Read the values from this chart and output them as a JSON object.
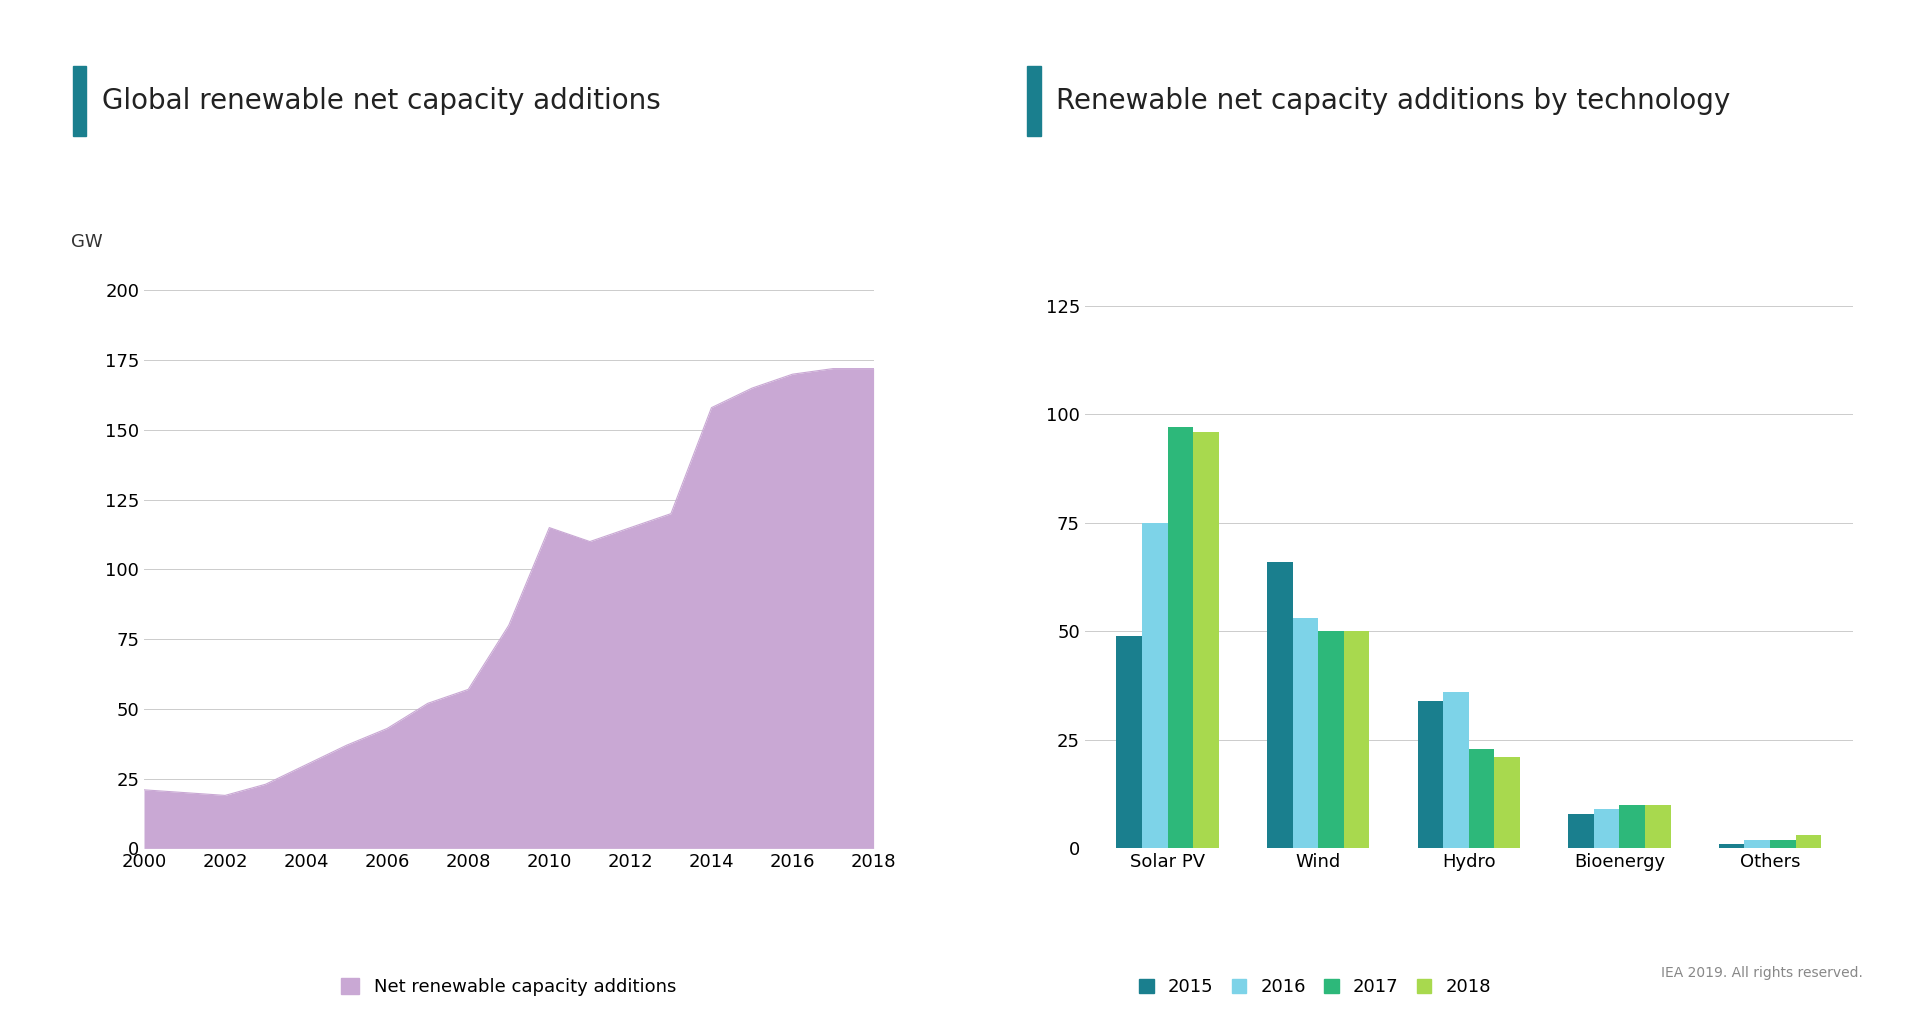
{
  "left_title": "Global renewable net capacity additions",
  "right_title": "Renewable net capacity additions by technology",
  "accent_color": "#1a7f8e",
  "bg_color": "#ffffff",
  "area_color": "#c9a8d4",
  "area_label": "Net renewable capacity additions",
  "left_ylabel": "GW",
  "left_years": [
    2000,
    2001,
    2002,
    2003,
    2004,
    2005,
    2006,
    2007,
    2008,
    2009,
    2010,
    2011,
    2012,
    2013,
    2014,
    2015,
    2016,
    2017,
    2018
  ],
  "left_values": [
    21,
    20,
    19,
    23,
    30,
    37,
    43,
    52,
    57,
    80,
    115,
    110,
    115,
    120,
    158,
    165,
    170,
    172,
    172
  ],
  "left_ylim": [
    0,
    210
  ],
  "left_yticks": [
    0,
    25,
    50,
    75,
    100,
    125,
    150,
    175,
    200
  ],
  "right_categories": [
    "Solar PV",
    "Wind",
    "Hydro",
    "Bioenergy",
    "Others"
  ],
  "bar_colors": {
    "2015": "#1a7f8e",
    "2016": "#7dd3e8",
    "2017": "#2db87a",
    "2018": "#a8d94e"
  },
  "bar_data": {
    "Solar PV": {
      "2015": 49,
      "2016": 75,
      "2017": 97,
      "2018": 96
    },
    "Wind": {
      "2015": 66,
      "2016": 53,
      "2017": 50,
      "2018": 50
    },
    "Hydro": {
      "2015": 34,
      "2016": 36,
      "2017": 23,
      "2018": 21
    },
    "Bioenergy": {
      "2015": 8,
      "2016": 9,
      "2017": 10,
      "2018": 10
    },
    "Others": {
      "2015": 1,
      "2016": 2,
      "2017": 2,
      "2018": 3
    }
  },
  "right_ylim": [
    0,
    135
  ],
  "right_yticks": [
    0,
    25,
    50,
    75,
    100,
    125
  ],
  "years": [
    "2015",
    "2016",
    "2017",
    "2018"
  ],
  "footer": "IEA 2019. All rights reserved.",
  "title_fontsize": 20,
  "axis_fontsize": 13,
  "legend_fontsize": 13,
  "tick_fontsize": 13
}
